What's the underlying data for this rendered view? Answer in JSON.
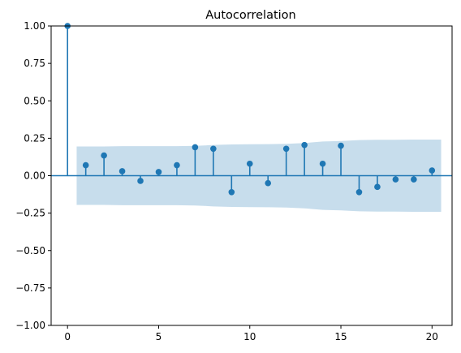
{
  "chart_data": {
    "type": "stem",
    "title": "Autocorrelation",
    "xlabel": "",
    "ylabel": "",
    "xlim": [
      -0.9,
      21.1
    ],
    "ylim": [
      -1.0,
      1.0
    ],
    "x_ticks": [
      0,
      5,
      10,
      15,
      20
    ],
    "y_ticks": [
      -1.0,
      -0.75,
      -0.5,
      -0.25,
      0.0,
      0.25,
      0.5,
      0.75,
      1.0
    ],
    "x_tick_labels": [
      "0",
      "5",
      "10",
      "15",
      "20"
    ],
    "y_tick_labels": [
      "−1.00",
      "−0.75",
      "−0.50",
      "−0.25",
      "0.00",
      "0.25",
      "0.50",
      "0.75",
      "1.00"
    ],
    "lags": [
      0,
      1,
      2,
      3,
      4,
      5,
      6,
      7,
      8,
      9,
      10,
      11,
      12,
      13,
      14,
      15,
      16,
      17,
      18,
      19,
      20
    ],
    "values": [
      1.0,
      0.07,
      0.135,
      0.03,
      -0.035,
      0.025,
      0.07,
      0.19,
      0.18,
      -0.11,
      0.08,
      -0.05,
      0.18,
      0.205,
      0.08,
      0.2,
      -0.11,
      -0.075,
      -0.025,
      -0.025,
      0.035
    ],
    "confidence_band": {
      "x": [
        0.5,
        1,
        2,
        3,
        4,
        5,
        6,
        7,
        8,
        9,
        10,
        11,
        12,
        13,
        14,
        15,
        16,
        17,
        18,
        19,
        20,
        20.5
      ],
      "upper": [
        0.195,
        0.195,
        0.195,
        0.197,
        0.197,
        0.197,
        0.197,
        0.199,
        0.205,
        0.209,
        0.21,
        0.211,
        0.213,
        0.218,
        0.228,
        0.232,
        0.238,
        0.24,
        0.24,
        0.241,
        0.241,
        0.241
      ],
      "lower": [
        -0.195,
        -0.195,
        -0.195,
        -0.197,
        -0.197,
        -0.197,
        -0.197,
        -0.199,
        -0.205,
        -0.209,
        -0.21,
        -0.211,
        -0.213,
        -0.218,
        -0.228,
        -0.232,
        -0.238,
        -0.24,
        -0.24,
        -0.241,
        -0.241,
        -0.241
      ]
    },
    "grid": false,
    "colors": {
      "stem": "#1f77b4",
      "band": "#1f77b4",
      "axis": "#000000"
    }
  }
}
